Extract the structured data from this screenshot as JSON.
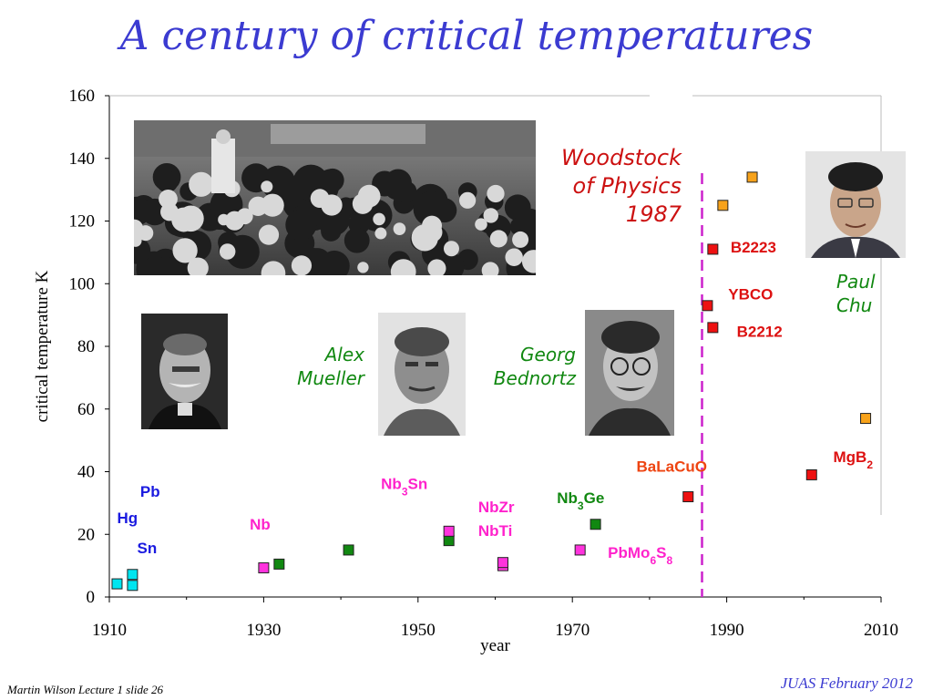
{
  "title": "A century of critical temperatures",
  "footer": {
    "left": "Martin Wilson Lecture 1 slide 26",
    "right": "JUAS February 2012"
  },
  "annotations": {
    "woodstock": [
      "Woodstock",
      "of Physics",
      "1987"
    ],
    "alex": [
      "Alex",
      "Mueller"
    ],
    "georg": [
      "Georg",
      "Bednortz"
    ],
    "paul": [
      "Paul",
      "Chu"
    ]
  },
  "photos": [
    {
      "name": "kamerlingh-onnes-photo"
    },
    {
      "name": "alex-mueller-photo"
    },
    {
      "name": "georg-bednortz-photo"
    },
    {
      "name": "woodstock-conference-photo"
    },
    {
      "name": "paul-chu-photo"
    }
  ],
  "chart_data": {
    "type": "scatter",
    "xlabel": "year",
    "ylabel": "critical temperature K",
    "xlim": [
      1910,
      2010
    ],
    "ylim": [
      0,
      160
    ],
    "xticks": [
      1910,
      1930,
      1950,
      1970,
      1990,
      2010
    ],
    "yticks": [
      0,
      20,
      40,
      60,
      80,
      100,
      120,
      140,
      160
    ],
    "vline_year": 1986.8,
    "colors": {
      "cyan": "#00e5f0",
      "magenta": "#ff33dd",
      "green": "#118811",
      "red": "#ee1111",
      "orange": "#f7a21a",
      "blue_label": "#1a1ae0",
      "magenta_label": "#ff22cc",
      "green_label": "#118811",
      "red_label": "#dd1111",
      "orange_label": "#ee4411",
      "vline": "#cc22cc"
    },
    "points": [
      {
        "x": 1911,
        "y": 4.2,
        "c": "cyan"
      },
      {
        "x": 1913,
        "y": 7.2,
        "c": "cyan"
      },
      {
        "x": 1913,
        "y": 3.7,
        "c": "cyan"
      },
      {
        "x": 1930,
        "y": 9.3,
        "c": "magenta"
      },
      {
        "x": 1932,
        "y": 10.5,
        "c": "green"
      },
      {
        "x": 1941,
        "y": 15,
        "c": "green"
      },
      {
        "x": 1954,
        "y": 18,
        "c": "green"
      },
      {
        "x": 1954,
        "y": 21,
        "c": "magenta"
      },
      {
        "x": 1961,
        "y": 10,
        "c": "magenta"
      },
      {
        "x": 1961,
        "y": 11,
        "c": "magenta"
      },
      {
        "x": 1971,
        "y": 15,
        "c": "magenta"
      },
      {
        "x": 1973,
        "y": 23.2,
        "c": "green"
      },
      {
        "x": 1985,
        "y": 32,
        "c": "red"
      },
      {
        "x": 1987.5,
        "y": 93,
        "c": "red"
      },
      {
        "x": 1988.2,
        "y": 86,
        "c": "red"
      },
      {
        "x": 1988.2,
        "y": 111,
        "c": "red"
      },
      {
        "x": 1989.5,
        "y": 125,
        "c": "orange"
      },
      {
        "x": 1993.3,
        "y": 134,
        "c": "orange"
      },
      {
        "x": 2001,
        "y": 39,
        "c": "red"
      },
      {
        "x": 2008,
        "y": 57,
        "c": "orange"
      }
    ],
    "labels": [
      {
        "id": "pb",
        "text": "Pb",
        "sub": "",
        "rest": "",
        "x": 1914,
        "y": 32,
        "c": "blue_label"
      },
      {
        "id": "hg",
        "text": "Hg",
        "sub": "",
        "rest": "",
        "x": 1911,
        "y": 23.5,
        "c": "blue_label"
      },
      {
        "id": "sn",
        "text": "Sn",
        "sub": "",
        "rest": "",
        "x": 1913.6,
        "y": 14,
        "c": "blue_label"
      },
      {
        "id": "nb",
        "text": "Nb",
        "sub": "",
        "rest": "",
        "x": 1928.2,
        "y": 21.5,
        "c": "magenta_label"
      },
      {
        "id": "nb3sn",
        "text": "Nb",
        "sub": "3",
        "rest": "Sn",
        "x": 1945.2,
        "y": 34.5,
        "c": "magenta_label"
      },
      {
        "id": "nbzr",
        "text": "NbZr",
        "sub": "",
        "rest": "",
        "x": 1957.8,
        "y": 27,
        "c": "magenta_label"
      },
      {
        "id": "nbti",
        "text": "NbTi",
        "sub": "",
        "rest": "",
        "x": 1957.8,
        "y": 19.5,
        "c": "magenta_label"
      },
      {
        "id": "nb3ge",
        "text": "Nb",
        "sub": "3",
        "rest": "Ge",
        "x": 1968,
        "y": 30,
        "c": "green_label"
      },
      {
        "id": "pbmo6s8",
        "text": "PbMo",
        "sub": "6",
        "rest": "S",
        "sub2": "8",
        "x": 1974.6,
        "y": 12.5,
        "c": "magenta_label"
      },
      {
        "id": "balacuo",
        "text": "BaLaCuO",
        "sub": "",
        "rest": "",
        "x": 1978.3,
        "y": 40,
        "c": "orange_label"
      },
      {
        "id": "ybco",
        "text": "YBCO",
        "sub": "",
        "rest": "",
        "x": 1990.2,
        "y": 95,
        "c": "red_label"
      },
      {
        "id": "b2223",
        "text": "B2223",
        "sub": "",
        "rest": "",
        "x": 1990.5,
        "y": 110,
        "c": "red_label"
      },
      {
        "id": "b2212",
        "text": "B2212",
        "sub": "",
        "rest": "",
        "x": 1991.3,
        "y": 83,
        "c": "red_label"
      },
      {
        "id": "mgb2",
        "text": "MgB",
        "sub": "2",
        "rest": "",
        "x": 2003.8,
        "y": 43,
        "c": "red_label"
      }
    ]
  }
}
